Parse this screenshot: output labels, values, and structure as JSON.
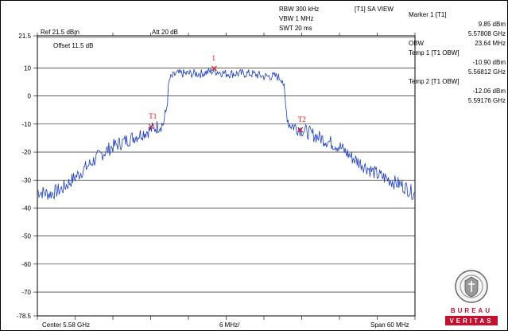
{
  "header": {
    "rbw": "RBW 300 kHz",
    "vbw": "VBW 1 MHz",
    "swt": "SWT 20 ms",
    "view": "[T1] SA VIEW",
    "ref": "Ref 21.5 dBm",
    "att": "Att  20 dB",
    "offset": "Offset 11.5 dB"
  },
  "right_panel": {
    "marker_label": "Marker 1 [T1]",
    "marker_level": "9.85 dBm",
    "marker_freq": "5.57808 GHz",
    "obw_label": "OBW",
    "obw_value": "23.64 MHz",
    "temp1_label": "Temp 1 [T1 OBW]",
    "temp1_level": "-10.90 dBm",
    "temp1_freq": "5.56812 GHz",
    "temp2_label": "Temp 2 [T1 OBW]",
    "temp2_level": "-12.06 dBm",
    "temp2_freq": "5.59176 GHz"
  },
  "footer": {
    "center": "Center 5.58 GHz",
    "div": "6 MHz/",
    "span": "Span 60 MHz"
  },
  "logo": {
    "brand_line1": "BUREAU",
    "brand_line2": "VERITAS",
    "seal_text": "BUREAU VERITAS",
    "seal_year": "1828"
  },
  "colors": {
    "trace": "#1a3ccc",
    "marker": "#ff0000",
    "grid": "#000000",
    "logo": "#c8102e"
  },
  "chart_data": {
    "type": "line",
    "xlabel": "",
    "ylabel": "",
    "x_range_mhz": [
      -30,
      30
    ],
    "y_range_db": [
      -78.5,
      21.5
    ],
    "y_ticks": [
      "21.5",
      "10",
      "0",
      "-10",
      "-20",
      "-30",
      "-40",
      "-50",
      "-60",
      "-70",
      "-78.5"
    ],
    "markers": [
      {
        "label": "1",
        "x_mhz": -1.9,
        "y_db": 9.85
      },
      {
        "label": "T1",
        "x_mhz": -11.9,
        "y_db": -10.9
      },
      {
        "label": "T2",
        "x_mhz": 11.8,
        "y_db": -12.06
      }
    ],
    "series": [
      {
        "x": [
          -30,
          -28,
          -26,
          -24,
          -22,
          -20,
          -18,
          -16,
          -14,
          -12,
          -10,
          -9.5,
          -9,
          -8,
          -6,
          -4,
          -2,
          0,
          2,
          4,
          6,
          8,
          9,
          9.5,
          10,
          12,
          14,
          16,
          18,
          20,
          22,
          24,
          26,
          28,
          30
        ],
        "y": [
          -34,
          -35,
          -33,
          -29,
          -25,
          -21,
          -18,
          -16,
          -14,
          -12,
          -10,
          -5,
          6,
          8,
          8,
          8,
          9,
          8,
          8,
          8,
          7,
          7,
          6,
          -5,
          -10,
          -12,
          -14,
          -16,
          -18,
          -22,
          -25,
          -28,
          -30,
          -32,
          -35
        ]
      }
    ]
  }
}
